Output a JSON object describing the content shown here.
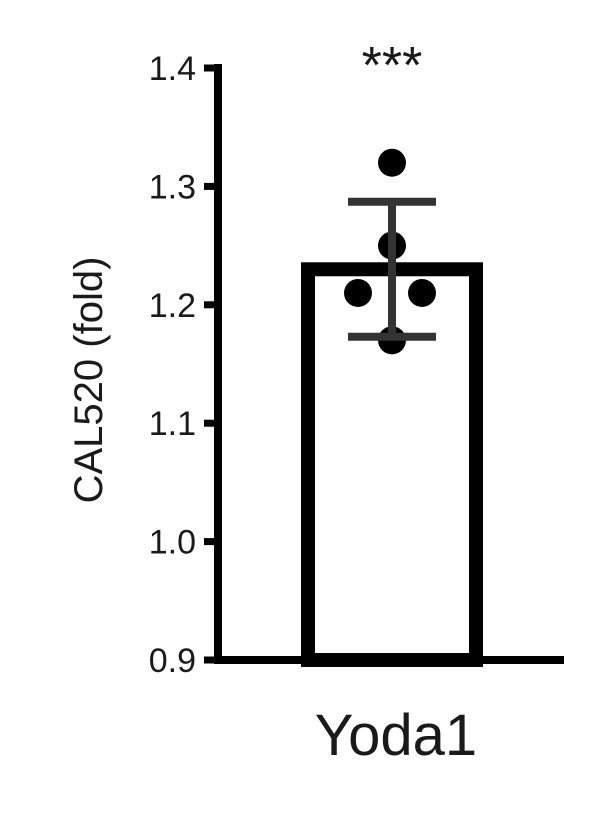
{
  "chart_data": {
    "type": "bar",
    "categories": [
      "Yoda1"
    ],
    "values": [
      1.23
    ],
    "error": [
      0.057
    ],
    "points": [
      [
        1.32,
        1.25,
        1.21,
        1.21,
        1.17
      ]
    ],
    "ylabel": "CAL520 (fold)",
    "ylim": [
      0.9,
      1.4
    ],
    "yticks": [
      0.9,
      1.0,
      1.1,
      1.2,
      1.3,
      1.4
    ],
    "ytick_labels": [
      "0.9",
      "1.0",
      "1.1",
      "1.2",
      "1.3",
      "1.4"
    ],
    "annotation": "***",
    "grid": false,
    "colors": {
      "bar_fill": "#ffffff",
      "bar_edge": "#000000",
      "points": "#000000",
      "error_bar": "#333333"
    }
  }
}
